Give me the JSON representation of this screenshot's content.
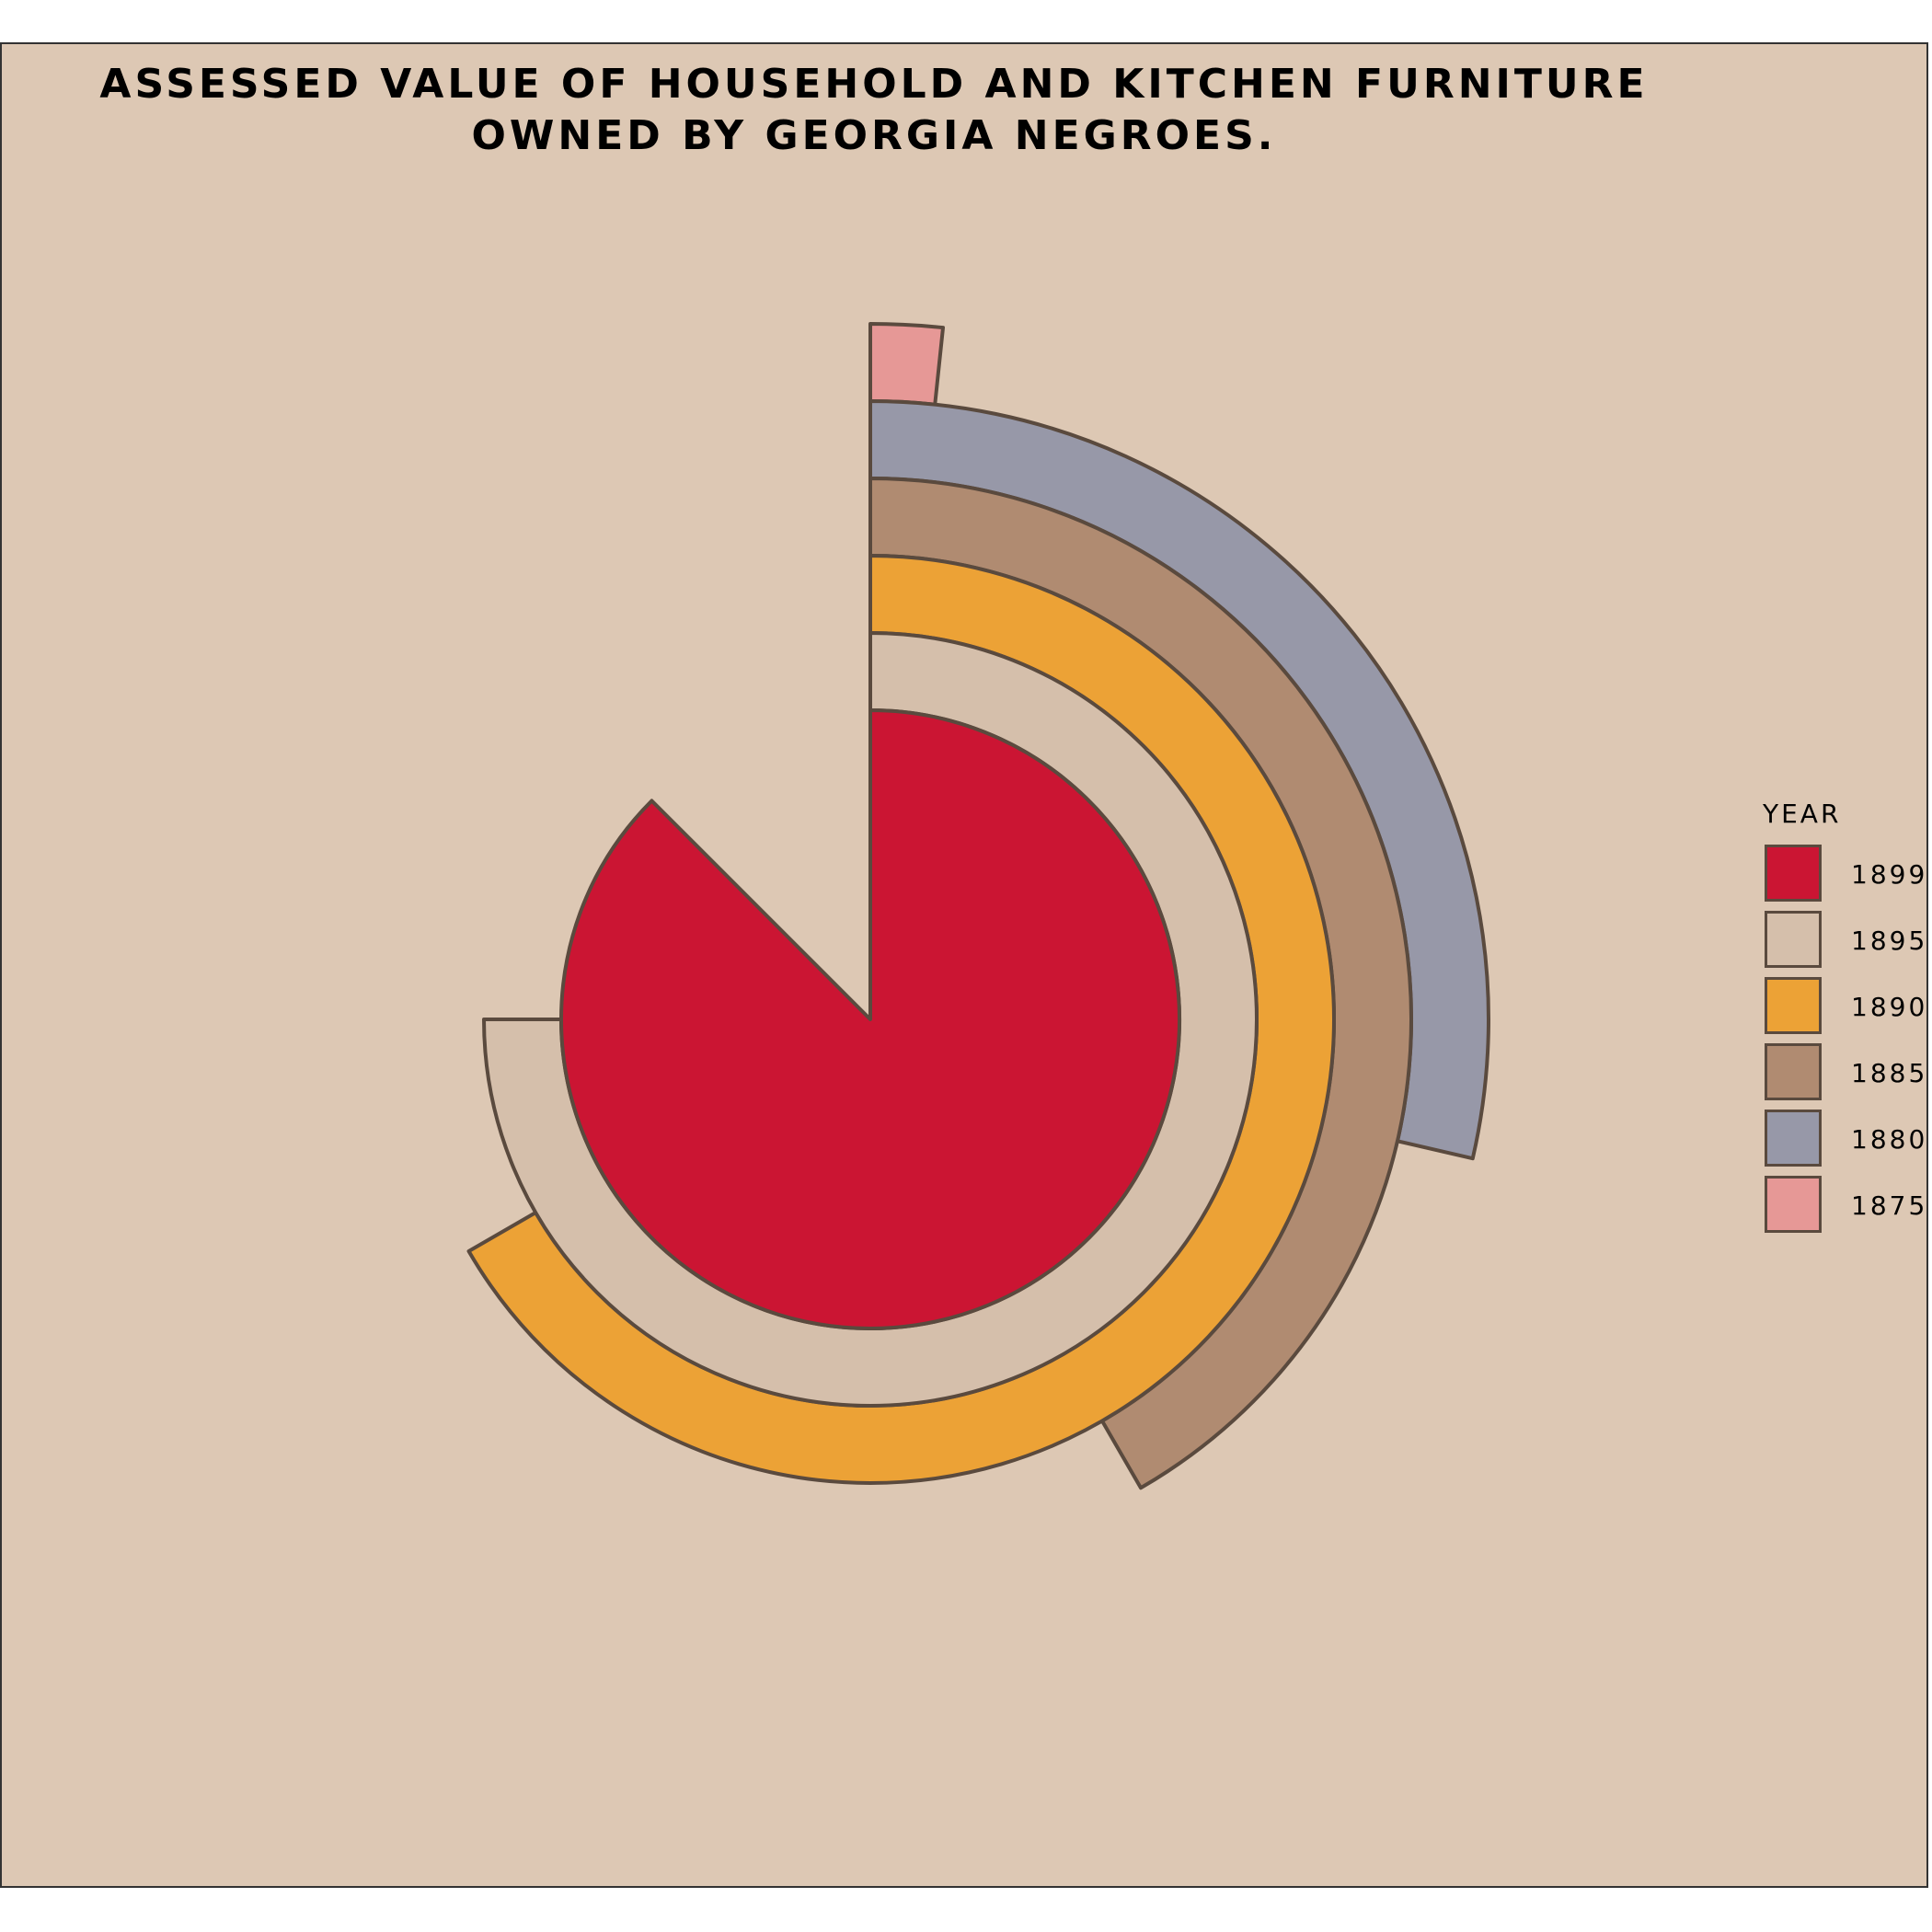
{
  "chart_data": {
    "type": "radial-bar",
    "title_line_1": "ASSESSED VALUE OF HOUSEHOLD AND KITCHEN FURNITURE",
    "title_line_2": "OWNED BY GEORGIA NEGROES.",
    "legend_title": "YEAR",
    "legend_placement": "right",
    "series": [
      {
        "year": "1899",
        "value": 315,
        "color": "#cb1533"
      },
      {
        "year": "1895",
        "value": 270,
        "color": "#d5bfab"
      },
      {
        "year": "1890",
        "value": 240,
        "color": "#eca236"
      },
      {
        "year": "1885",
        "value": 150,
        "color": "#b08b71"
      },
      {
        "year": "1880",
        "value": 103,
        "color": "#9798a8"
      },
      {
        "year": "1875",
        "value": 6,
        "color": "#e69896"
      }
    ],
    "angle_unit": "degrees",
    "max_value": 360,
    "border_color": "#5a4a3e",
    "background_color": "#ddc8b4"
  }
}
